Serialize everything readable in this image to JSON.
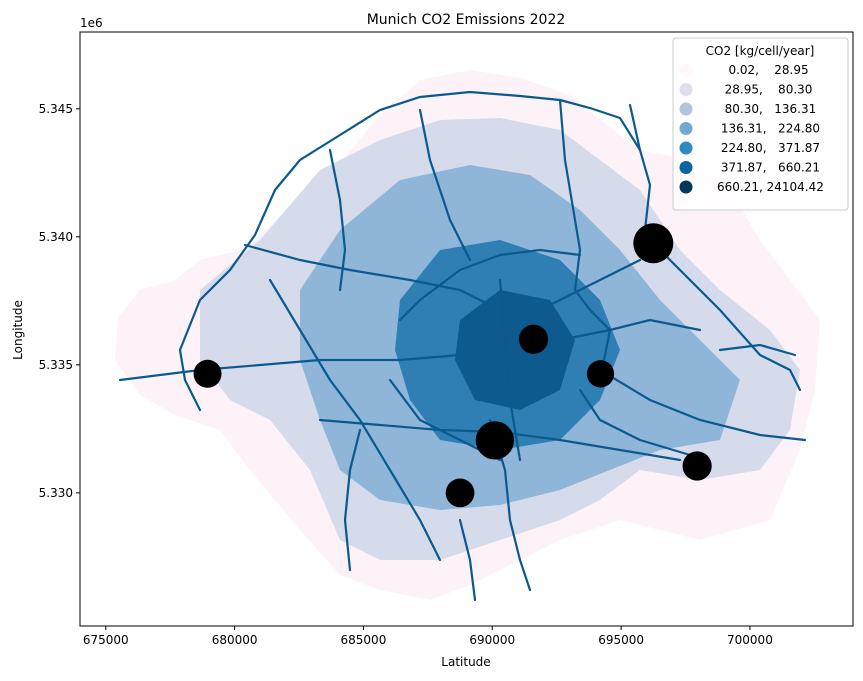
{
  "chart_data": {
    "type": "scatter",
    "title": "Munich CO2 Emissions 2022",
    "xlabel": "Latitude",
    "ylabel": "Longitude",
    "y_offset_label": "1e6",
    "xlim": [
      674000,
      704000
    ],
    "ylim": [
      5.3248,
      5.348
    ],
    "x_ticks": [
      675000,
      680000,
      685000,
      690000,
      695000,
      700000
    ],
    "y_ticks": [
      5.33,
      5.335,
      5.34,
      5.345
    ],
    "x_tick_labels": [
      "675000",
      "680000",
      "685000",
      "690000",
      "695000",
      "700000"
    ],
    "y_tick_labels": [
      "5.330",
      "5.335",
      "5.340",
      "5.345"
    ],
    "grid": false,
    "legend": {
      "title": "CO2 [kg/cell/year]",
      "placement": "top-right",
      "classes": [
        {
          "label": "   0.02,    28.95",
          "color": "#fff7fb"
        },
        {
          "label": "  28.95,    80.30",
          "color": "#e0dded"
        },
        {
          "label": "  80.30,   136.31",
          "color": "#b4c4df"
        },
        {
          "label": " 136.31,   224.80",
          "color": "#73a9cf"
        },
        {
          "label": " 224.80,   371.87",
          "color": "#2f8bbe"
        },
        {
          "label": " 371.87,   660.21",
          "color": "#0566a0"
        },
        {
          "label": "660.21, 24104.42",
          "color": "#023858"
        }
      ]
    },
    "point_sources": [
      {
        "x": 696250,
        "y": 5.33975,
        "relative_size": 1.0
      },
      {
        "x": 690100,
        "y": 5.33205,
        "relative_size": 0.93
      },
      {
        "x": 691600,
        "y": 5.336,
        "relative_size": 0.55
      },
      {
        "x": 678950,
        "y": 5.33465,
        "relative_size": 0.5
      },
      {
        "x": 694200,
        "y": 5.33465,
        "relative_size": 0.47
      },
      {
        "x": 688750,
        "y": 5.33,
        "relative_size": 0.53
      },
      {
        "x": 697950,
        "y": 5.33105,
        "relative_size": 0.55
      }
    ],
    "point_color": "#000000"
  }
}
